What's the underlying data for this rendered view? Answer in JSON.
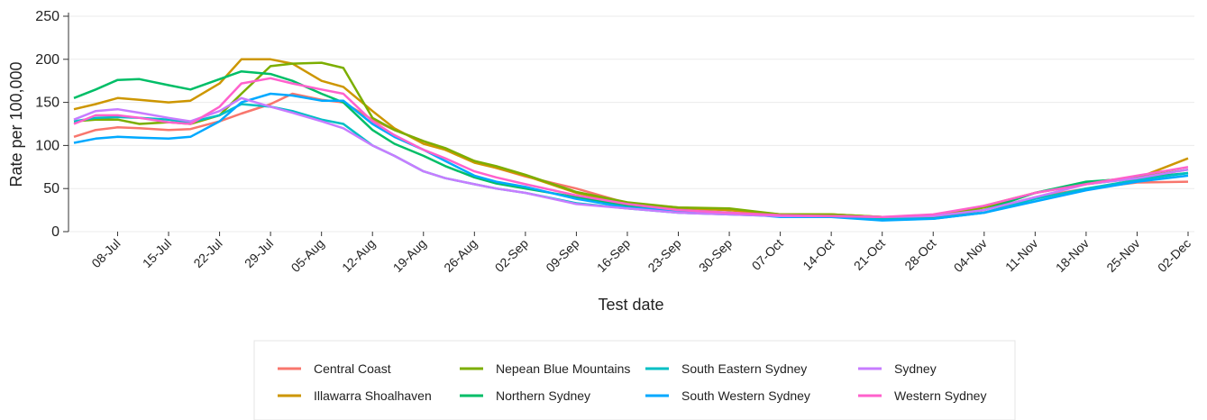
{
  "chart_data": {
    "type": "line",
    "x_label": "Test date",
    "y_label": "Rate per 100,000",
    "x": [
      -6,
      -3,
      0,
      3,
      7,
      10,
      14,
      17,
      21,
      24,
      28,
      31,
      35,
      38,
      42,
      45,
      49,
      52,
      56,
      63,
      70,
      77,
      84,
      91,
      98,
      105,
      112,
      119,
      126,
      133,
      140,
      147
    ],
    "xlim": [
      -6,
      147
    ],
    "xticks": [
      {
        "value": 0,
        "label": "08-Jul"
      },
      {
        "value": 7,
        "label": "15-Jul"
      },
      {
        "value": 14,
        "label": "22-Jul"
      },
      {
        "value": 21,
        "label": "29-Jul"
      },
      {
        "value": 28,
        "label": "05-Aug"
      },
      {
        "value": 35,
        "label": "12-Aug"
      },
      {
        "value": 42,
        "label": "19-Aug"
      },
      {
        "value": 49,
        "label": "26-Aug"
      },
      {
        "value": 56,
        "label": "02-Sep"
      },
      {
        "value": 63,
        "label": "09-Sep"
      },
      {
        "value": 70,
        "label": "16-Sep"
      },
      {
        "value": 77,
        "label": "23-Sep"
      },
      {
        "value": 84,
        "label": "30-Sep"
      },
      {
        "value": 91,
        "label": "07-Oct"
      },
      {
        "value": 98,
        "label": "14-Oct"
      },
      {
        "value": 105,
        "label": "21-Oct"
      },
      {
        "value": 112,
        "label": "28-Oct"
      },
      {
        "value": 119,
        "label": "04-Nov"
      },
      {
        "value": 126,
        "label": "11-Nov"
      },
      {
        "value": 133,
        "label": "18-Nov"
      },
      {
        "value": 140,
        "label": "25-Nov"
      },
      {
        "value": 147,
        "label": "02-Dec"
      }
    ],
    "ylim": [
      0,
      250
    ],
    "yticks": [
      0,
      50,
      100,
      150,
      200,
      250
    ],
    "grid": true,
    "legend": "bottom",
    "series": [
      {
        "name": "Central Coast",
        "color": "#F8766D",
        "values": [
          110,
          118,
          121,
          120,
          118,
          119,
          128,
          137,
          148,
          160,
          153,
          150,
          130,
          118,
          105,
          95,
          82,
          74,
          64,
          50,
          33,
          27,
          25,
          20,
          20,
          17,
          17,
          25,
          40,
          50,
          57,
          58
        ]
      },
      {
        "name": "Illawarra Shoalhaven",
        "color": "#CD9600",
        "values": [
          142,
          148,
          155,
          153,
          150,
          152,
          172,
          200,
          200,
          195,
          175,
          168,
          140,
          120,
          102,
          95,
          80,
          74,
          65,
          45,
          33,
          28,
          25,
          20,
          20,
          17,
          17,
          30,
          45,
          55,
          62,
          85
        ]
      },
      {
        "name": "Nepean Blue Mountains",
        "color": "#7CAE00",
        "values": [
          128,
          130,
          130,
          125,
          127,
          125,
          135,
          160,
          192,
          195,
          196,
          190,
          132,
          118,
          105,
          97,
          82,
          76,
          66,
          46,
          34,
          28,
          27,
          20,
          20,
          17,
          16,
          28,
          45,
          57,
          63,
          72
        ]
      },
      {
        "name": "Northern Sydney",
        "color": "#00BE67",
        "values": [
          155,
          165,
          176,
          177,
          170,
          165,
          177,
          186,
          183,
          175,
          160,
          150,
          118,
          102,
          88,
          76,
          63,
          56,
          50,
          40,
          30,
          25,
          22,
          18,
          18,
          15,
          16,
          25,
          45,
          58,
          62,
          68
        ]
      },
      {
        "name": "South Eastern Sydney",
        "color": "#00BFC4",
        "values": [
          128,
          132,
          133,
          132,
          130,
          127,
          135,
          148,
          145,
          140,
          130,
          125,
          100,
          88,
          70,
          62,
          55,
          50,
          45,
          33,
          27,
          22,
          20,
          18,
          18,
          15,
          15,
          22,
          38,
          50,
          60,
          68
        ]
      },
      {
        "name": "South Western Sydney",
        "color": "#00A9FF",
        "values": [
          103,
          108,
          110,
          109,
          108,
          110,
          128,
          150,
          160,
          158,
          152,
          152,
          125,
          110,
          95,
          82,
          65,
          58,
          52,
          38,
          28,
          24,
          22,
          17,
          17,
          13,
          15,
          22,
          35,
          48,
          58,
          65
        ]
      },
      {
        "name": "Sydney",
        "color": "#C77CFF",
        "values": [
          130,
          140,
          142,
          138,
          132,
          128,
          140,
          155,
          145,
          138,
          128,
          120,
          100,
          88,
          70,
          62,
          55,
          50,
          45,
          32,
          27,
          22,
          20,
          18,
          18,
          17,
          18,
          25,
          40,
          55,
          62,
          72
        ]
      },
      {
        "name": "Western Sydney",
        "color": "#FF61CC",
        "values": [
          125,
          135,
          135,
          132,
          127,
          125,
          145,
          172,
          178,
          172,
          165,
          160,
          128,
          112,
          95,
          85,
          70,
          63,
          55,
          42,
          32,
          25,
          22,
          19,
          18,
          17,
          20,
          30,
          45,
          55,
          65,
          75
        ]
      }
    ]
  }
}
